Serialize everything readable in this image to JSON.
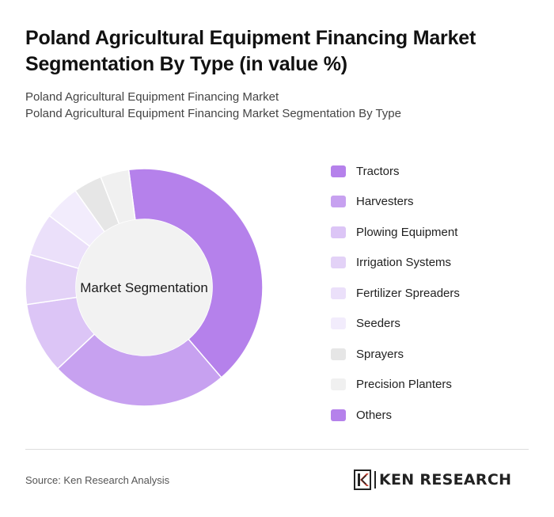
{
  "title": "Poland Agricultural Equipment Financing Market Segmentation By Type (in value %)",
  "subtitle": [
    "Poland Agricultural Equipment Financing Market",
    "Poland Agricultural Equipment Financing Market Segmentation By Type"
  ],
  "chart_data": {
    "type": "pie",
    "style": "donut",
    "center_label": "Market Segmentation",
    "legend_position": "right",
    "categories": [
      "Tractors",
      "Harvesters",
      "Plowing Equipment",
      "Irrigation Systems",
      "Fertilizer Spreaders",
      "Seeders",
      "Sprayers",
      "Precision Planters",
      "Others"
    ],
    "values": [
      42,
      25,
      10,
      7,
      6,
      5,
      4,
      4,
      0
    ],
    "colors": [
      "#b581eb",
      "#c7a1f0",
      "#dcc5f6",
      "#e3d2f7",
      "#ebe0fa",
      "#f2ecfc",
      "#e6e6e6",
      "#f0f0f0",
      "#b581eb"
    ]
  },
  "source": "Source: Ken Research Analysis",
  "logo": {
    "icon": "ken-research-k-icon",
    "text": "KEN RESEARCH"
  }
}
